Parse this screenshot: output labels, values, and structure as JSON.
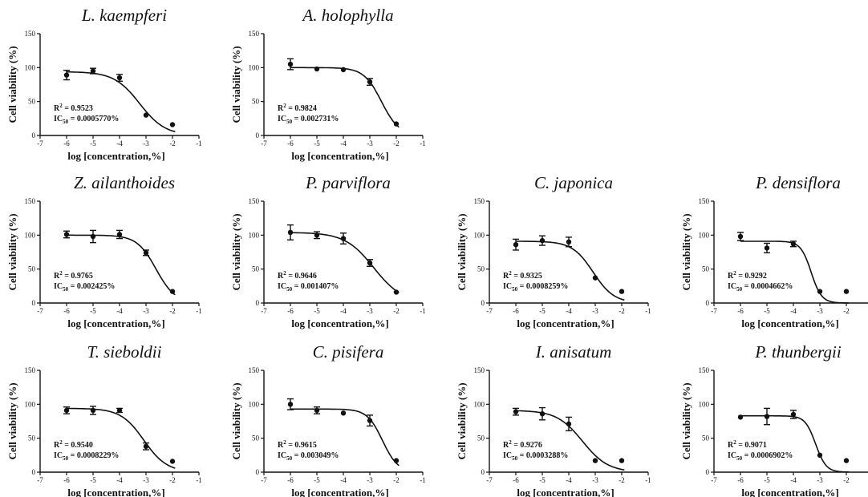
{
  "chart_data": [
    {
      "type": "scatter",
      "title": "L. kaempferi",
      "xlabel": "log [concentration,%]",
      "ylabel": "Cell viability (%)",
      "xlim": [
        -7,
        -1
      ],
      "ylim": [
        0,
        150
      ],
      "x_ticks": [
        "-7",
        "-6",
        "-5",
        "-4",
        "-3",
        "-2",
        "-1"
      ],
      "y_ticks": [
        "0",
        "50",
        "100",
        "150"
      ],
      "x": [
        -6,
        -5,
        -4,
        -3,
        -2
      ],
      "values": [
        89,
        95,
        85,
        30,
        16
      ],
      "errors": [
        7,
        4,
        5,
        0,
        0
      ],
      "fit": {
        "top": 94,
        "bottom": 0,
        "log_ic50": -3.24,
        "hill": -0.9
      },
      "r2_label": "R",
      "r2_value": " = 0.9523",
      "ic50_label": "IC",
      "ic50_sub": "50",
      "ic50_value": " = 0.0005770%"
    },
    {
      "type": "scatter",
      "title": "A. holophylla",
      "xlabel": "log [concentration,%]",
      "ylabel": "Cell viability (%)",
      "xlim": [
        -7,
        -1
      ],
      "ylim": [
        0,
        150
      ],
      "x_ticks": [
        "-7",
        "-6",
        "-5",
        "-4",
        "-3",
        "-2",
        "-1"
      ],
      "y_ticks": [
        "0",
        "50",
        "100",
        "150"
      ],
      "x": [
        -6,
        -5,
        -4,
        -3,
        -2
      ],
      "values": [
        105,
        98,
        97,
        79,
        17
      ],
      "errors": [
        8,
        0,
        0,
        5,
        0
      ],
      "fit": {
        "top": 100,
        "bottom": 0,
        "log_ic50": -2.56,
        "hill": -1.3
      },
      "r2_label": "R",
      "r2_value": " = 0.9824",
      "ic50_label": "IC",
      "ic50_sub": "50",
      "ic50_value": " = 0.002731%"
    },
    {
      "type": "scatter",
      "title": "Z. ailanthoides",
      "xlabel": "log [concentration,%]",
      "ylabel": "Cell viability (%)",
      "xlim": [
        -7,
        -1
      ],
      "ylim": [
        0,
        150
      ],
      "x_ticks": [
        "-7",
        "-6",
        "-5",
        "-4",
        "-3",
        "-2",
        "-1"
      ],
      "y_ticks": [
        "0",
        "50",
        "100",
        "150"
      ],
      "x": [
        -6,
        -5,
        -4,
        -3,
        -2
      ],
      "values": [
        101,
        98,
        101,
        74,
        17
      ],
      "errors": [
        5,
        9,
        6,
        4,
        0
      ],
      "fit": {
        "top": 100,
        "bottom": 0,
        "log_ic50": -2.62,
        "hill": -1.2
      },
      "r2_label": "R",
      "r2_value": " = 0.9765",
      "ic50_label": "IC",
      "ic50_sub": "50",
      "ic50_value": " = 0.002425%"
    },
    {
      "type": "scatter",
      "title": "P. parviflora",
      "xlabel": "log [concentration,%]",
      "ylabel": "Cell viability (%)",
      "xlim": [
        -7,
        -1
      ],
      "ylim": [
        0,
        150
      ],
      "x_ticks": [
        "-7",
        "-6",
        "-5",
        "-4",
        "-3",
        "-2",
        "-1"
      ],
      "y_ticks": [
        "0",
        "50",
        "100",
        "150"
      ],
      "x": [
        -6,
        -5,
        -4,
        -3,
        -2
      ],
      "values": [
        104,
        100,
        95,
        59,
        16
      ],
      "errors": [
        11,
        5,
        8,
        5,
        0
      ],
      "fit": {
        "top": 104,
        "bottom": 0,
        "log_ic50": -2.85,
        "hill": -0.8
      },
      "r2_label": "R",
      "r2_value": " = 0.9646",
      "ic50_label": "IC",
      "ic50_sub": "50",
      "ic50_value": " = 0.001407%"
    },
    {
      "type": "scatter",
      "title": "C. japonica",
      "xlabel": "log [concentration,%]",
      "ylabel": "Cell viability (%)",
      "xlim": [
        -7,
        -1
      ],
      "ylim": [
        0,
        150
      ],
      "x_ticks": [
        "-7",
        "-6",
        "-5",
        "-4",
        "-3",
        "-2",
        "-1"
      ],
      "y_ticks": [
        "0",
        "50",
        "100",
        "150"
      ],
      "x": [
        -6,
        -5,
        -4,
        -3,
        -2
      ],
      "values": [
        86,
        92,
        90,
        37,
        17
      ],
      "errors": [
        8,
        7,
        7,
        0,
        0
      ],
      "fit": {
        "top": 91,
        "bottom": 0,
        "log_ic50": -3.08,
        "hill": -1.1
      },
      "r2_label": "R",
      "r2_value": " = 0.9325",
      "ic50_label": "IC",
      "ic50_sub": "50",
      "ic50_value": " = 0.0008259%"
    },
    {
      "type": "scatter",
      "title": "P. densiflora",
      "xlabel": "log [concentration,%]",
      "ylabel": "Cell viability (%)",
      "xlim": [
        -7,
        -1
      ],
      "ylim": [
        0,
        150
      ],
      "x_ticks": [
        "-7",
        "-6",
        "-5",
        "-4",
        "-3",
        "-2",
        "-1"
      ],
      "y_ticks": [
        "0",
        "50",
        "100",
        "150"
      ],
      "x": [
        -6,
        -5,
        -4,
        -3,
        -2
      ],
      "values": [
        98,
        81,
        87,
        17,
        17
      ],
      "errors": [
        6,
        7,
        4,
        0,
        0
      ],
      "fit": {
        "top": 91,
        "bottom": 0,
        "log_ic50": -3.33,
        "hill": -2.2
      },
      "r2_label": "R",
      "r2_value": " = 0.9292",
      "ic50_label": "IC",
      "ic50_sub": "50",
      "ic50_value": " = 0.0004662%"
    },
    {
      "type": "scatter",
      "title": "T. sieboldii",
      "xlabel": "log [concentration,%]",
      "ylabel": "Cell viability (%)",
      "xlim": [
        -7,
        -1
      ],
      "ylim": [
        0,
        150
      ],
      "x_ticks": [
        "-7",
        "-6",
        "-5",
        "-4",
        "-3",
        "-2",
        "-1"
      ],
      "y_ticks": [
        "0",
        "50",
        "100",
        "150"
      ],
      "x": [
        -6,
        -5,
        -4,
        -3,
        -2
      ],
      "values": [
        91,
        91,
        91,
        38,
        16
      ],
      "errors": [
        5,
        6,
        3,
        5,
        0
      ],
      "fit": {
        "top": 94,
        "bottom": 0,
        "log_ic50": -3.08,
        "hill": -1.0
      },
      "r2_label": "R",
      "r2_value": " = 0.9540",
      "ic50_label": "IC",
      "ic50_sub": "50",
      "ic50_value": " = 0.0008229%"
    },
    {
      "type": "scatter",
      "title": "C. pisifera",
      "xlabel": "log [concentration,%]",
      "ylabel": "Cell viability (%)",
      "xlim": [
        -7,
        -1
      ],
      "ylim": [
        0,
        150
      ],
      "x_ticks": [
        "-7",
        "-6",
        "-5",
        "-4",
        "-3",
        "-2",
        "-1"
      ],
      "y_ticks": [
        "0",
        "50",
        "100",
        "150"
      ],
      "x": [
        -6,
        -5,
        -4,
        -3,
        -2
      ],
      "values": [
        100,
        91,
        87,
        76,
        17
      ],
      "errors": [
        8,
        5,
        0,
        8,
        0
      ],
      "fit": {
        "top": 93,
        "bottom": 0,
        "log_ic50": -2.52,
        "hill": -1.5
      },
      "r2_label": "R",
      "r2_value": " = 0.9615",
      "ic50_label": "IC",
      "ic50_sub": "50",
      "ic50_value": " = 0.003049%"
    },
    {
      "type": "scatter",
      "title": "I. anisatum",
      "xlabel": "log [concentration,%]",
      "ylabel": "Cell viability (%)",
      "xlim": [
        -7,
        -1
      ],
      "ylim": [
        0,
        150
      ],
      "x_ticks": [
        "-7",
        "-6",
        "-5",
        "-4",
        "-3",
        "-2",
        "-1"
      ],
      "y_ticks": [
        "0",
        "50",
        "100",
        "150"
      ],
      "x": [
        -6,
        -5,
        -4,
        -3,
        -2
      ],
      "values": [
        89,
        86,
        71,
        17,
        17
      ],
      "errors": [
        5,
        9,
        10,
        0,
        0
      ],
      "fit": {
        "top": 91,
        "bottom": 0,
        "log_ic50": -3.48,
        "hill": -0.9
      },
      "r2_label": "R",
      "r2_value": " = 0.9276",
      "ic50_label": "IC",
      "ic50_sub": "50",
      "ic50_value": " = 0.0003288%"
    },
    {
      "type": "scatter",
      "title": "P. thunbergii",
      "xlabel": "log [concentration,%]",
      "ylabel": "Cell viability (%)",
      "xlim": [
        -7,
        -1
      ],
      "ylim": [
        0,
        150
      ],
      "x_ticks": [
        "-7",
        "-6",
        "-5",
        "-4",
        "-3",
        "-2",
        "-1"
      ],
      "y_ticks": [
        "0",
        "50",
        "100",
        "150"
      ],
      "x": [
        -6,
        -5,
        -4,
        -3,
        -2
      ],
      "values": [
        81,
        82,
        85,
        25,
        17
      ],
      "errors": [
        0,
        12,
        6,
        0,
        0
      ],
      "fit": {
        "top": 83,
        "bottom": 0,
        "log_ic50": -3.16,
        "hill": -2.2
      },
      "r2_label": "R",
      "r2_value": " = 0.9071",
      "ic50_label": "IC",
      "ic50_sub": "50",
      "ic50_value": " = 0.0006902%"
    }
  ]
}
